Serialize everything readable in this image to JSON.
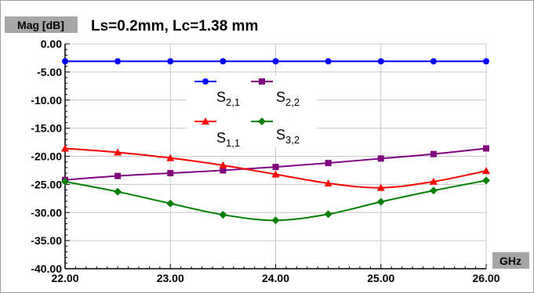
{
  "chart_data": {
    "type": "line",
    "title": "Ls=0.2mm, Lc=1.38 mm",
    "ylabel": "Mag [dB]",
    "xlabel": "GHz",
    "xlim": [
      22,
      26
    ],
    "ylim": [
      -40,
      0
    ],
    "x_ticks": [
      "22.00",
      "23.00",
      "24.00",
      "25.00",
      "26.00"
    ],
    "y_ticks": [
      "0.00",
      "-5.00",
      "-10.00",
      "-15.00",
      "-20.00",
      "-25.00",
      "-30.00",
      "-35.00",
      "-40.00"
    ],
    "x": [
      22.0,
      22.5,
      23.0,
      23.5,
      24.0,
      24.5,
      25.0,
      25.5,
      26.0
    ],
    "grid": true,
    "legend_position": "upper-center",
    "series": [
      {
        "name": "S2,1",
        "name_main": "S",
        "name_sub": "2,1",
        "color": "#0000ff",
        "marker": "circle",
        "values": [
          -3.1,
          -3.1,
          -3.1,
          -3.1,
          -3.1,
          -3.1,
          -3.1,
          -3.1,
          -3.1
        ]
      },
      {
        "name": "S2,2",
        "name_main": "S",
        "name_sub": "2,2",
        "color": "#800080",
        "marker": "square",
        "values": [
          -24.2,
          -23.5,
          -23.0,
          -22.5,
          -21.9,
          -21.2,
          -20.4,
          -19.6,
          -18.6
        ]
      },
      {
        "name": "S1,1",
        "name_main": "S",
        "name_sub": "1,1",
        "color": "#ff0000",
        "marker": "triangle",
        "values": [
          -18.6,
          -19.3,
          -20.3,
          -21.6,
          -23.2,
          -24.8,
          -25.6,
          -24.5,
          -22.6
        ]
      },
      {
        "name": "S3,2",
        "name_main": "S",
        "name_sub": "3,2",
        "color": "#008000",
        "marker": "diamond",
        "values": [
          -24.5,
          -26.3,
          -28.4,
          -30.4,
          -31.4,
          -30.3,
          -28.1,
          -26.1,
          -24.3
        ]
      }
    ]
  }
}
